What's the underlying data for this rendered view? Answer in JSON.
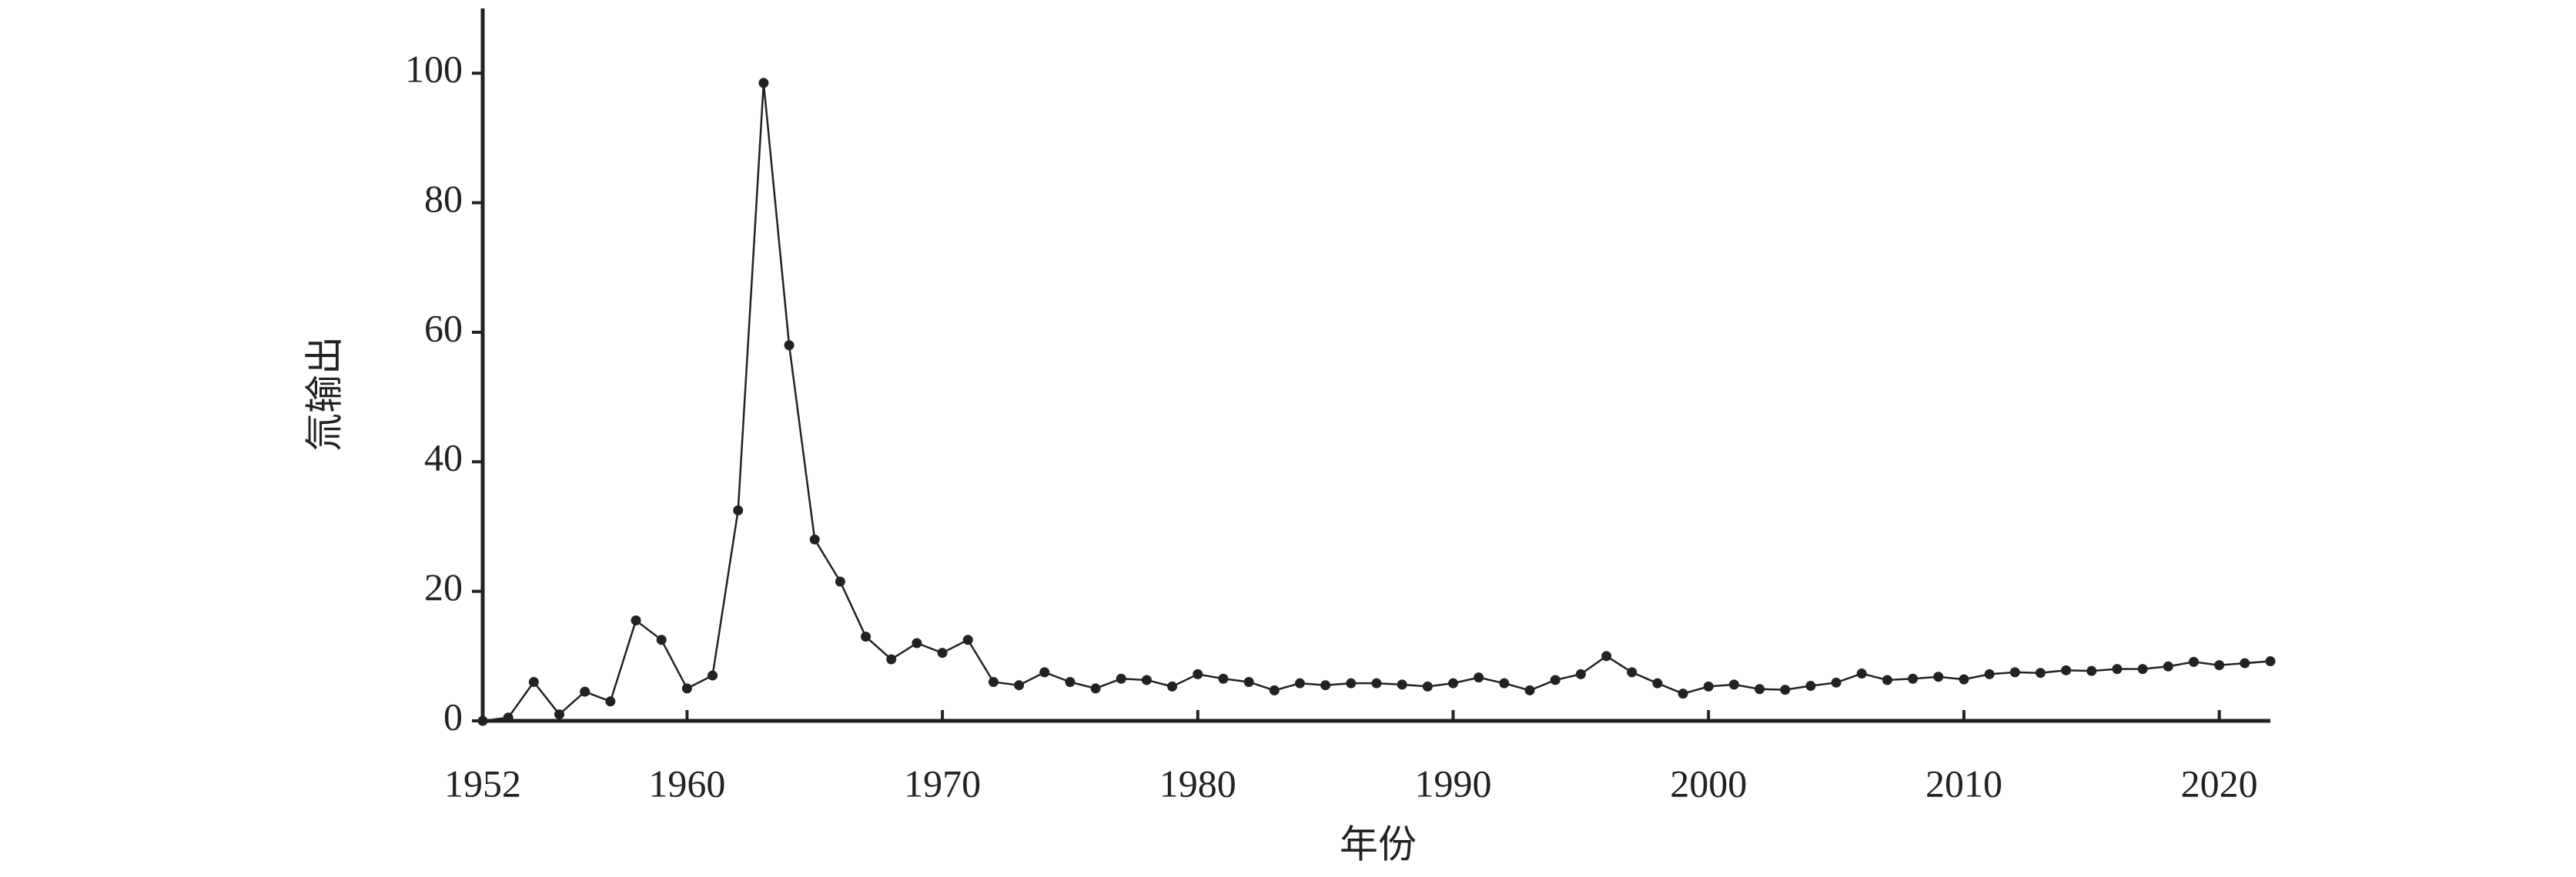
{
  "chart_data": {
    "type": "line",
    "x_label": "年份",
    "y_label": "氚输出",
    "x": [
      1952,
      1953,
      1954,
      1955,
      1956,
      1957,
      1958,
      1959,
      1960,
      1961,
      1962,
      1963,
      1964,
      1965,
      1966,
      1967,
      1968,
      1969,
      1970,
      1971,
      1972,
      1973,
      1974,
      1975,
      1976,
      1977,
      1978,
      1979,
      1980,
      1981,
      1982,
      1983,
      1984,
      1985,
      1986,
      1987,
      1988,
      1989,
      1990,
      1991,
      1992,
      1993,
      1994,
      1995,
      1996,
      1997,
      1998,
      1999,
      2000,
      2001,
      2002,
      2003,
      2004,
      2005,
      2006,
      2007,
      2008,
      2009,
      2010,
      2011,
      2012,
      2013,
      2014,
      2015,
      2016,
      2017,
      2018,
      2019,
      2020,
      2021,
      2022
    ],
    "values": [
      0,
      0.5,
      6,
      1,
      4.5,
      3,
      15.5,
      12.5,
      5,
      7,
      32.5,
      98.5,
      58,
      28,
      21.5,
      13,
      9.5,
      12,
      10.5,
      12.5,
      6,
      5.5,
      7.5,
      6,
      5,
      6.5,
      6.3,
      5.3,
      7.2,
      6.5,
      6,
      4.7,
      5.8,
      5.5,
      5.8,
      5.8,
      5.6,
      5.3,
      5.8,
      6.7,
      5.8,
      4.7,
      6.3,
      7.2,
      10,
      7.5,
      5.8,
      4.2,
      5.3,
      5.6,
      4.9,
      4.8,
      5.4,
      5.9,
      7.3,
      6.3,
      6.5,
      6.8,
      6.4,
      7.2,
      7.5,
      7.4,
      7.8,
      7.7,
      8,
      8,
      8.4,
      9.1,
      8.6,
      8.9,
      9.2
    ],
    "color": "#222222",
    "xlim": [
      1952,
      2022
    ],
    "xticks": [
      1952,
      1960,
      1970,
      1980,
      1990,
      2000,
      2010,
      2020
    ],
    "ylim": [
      0,
      110
    ],
    "yticks": [
      0,
      20,
      40,
      60,
      80,
      100
    ]
  }
}
